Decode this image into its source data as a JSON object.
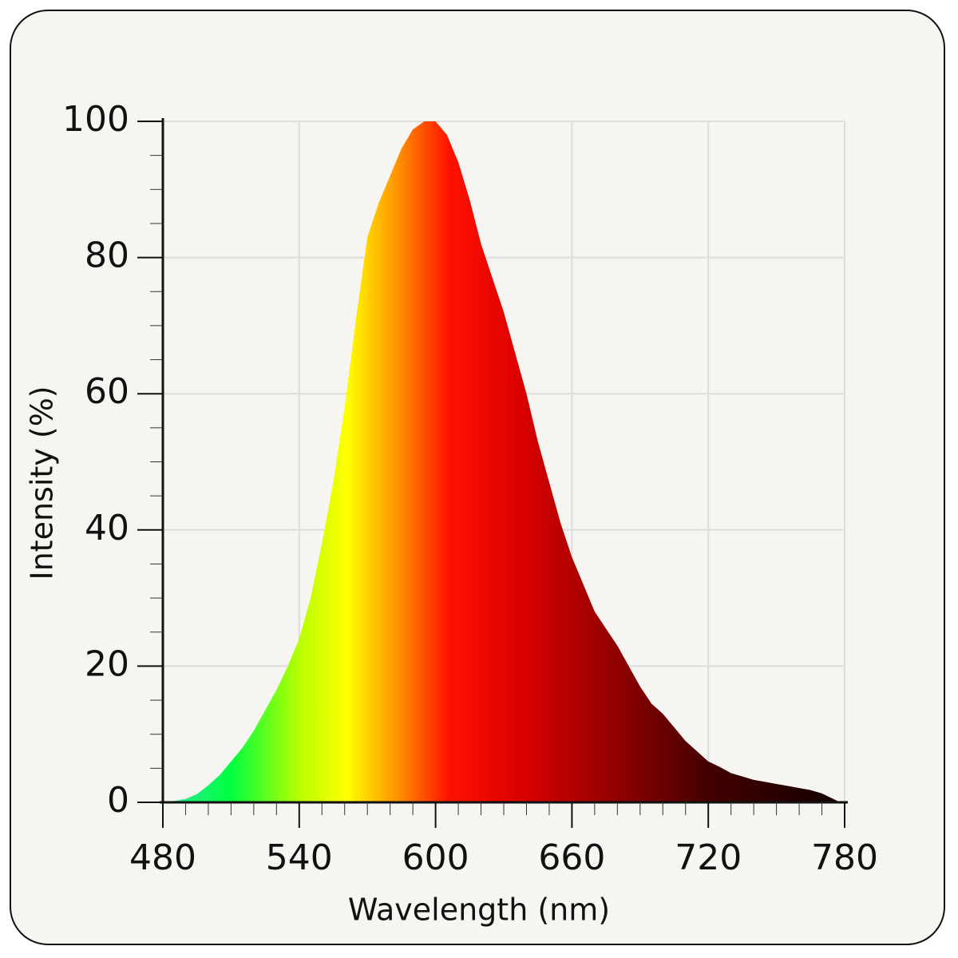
{
  "chart_data": {
    "type": "area",
    "x_label": "Wavelength (nm)",
    "y_label": "Intensity (%)",
    "x": [
      480,
      485,
      490,
      495,
      500,
      505,
      510,
      515,
      520,
      525,
      530,
      535,
      540,
      545,
      550,
      555,
      560,
      565,
      570,
      575,
      580,
      585,
      590,
      595,
      600,
      605,
      610,
      615,
      620,
      625,
      630,
      635,
      640,
      645,
      650,
      655,
      660,
      665,
      670,
      675,
      680,
      685,
      690,
      695,
      700,
      705,
      710,
      715,
      720,
      725,
      730,
      735,
      740,
      745,
      750,
      755,
      760,
      765,
      770,
      775,
      778
    ],
    "values": [
      0,
      0.2,
      0.5,
      1.2,
      2.5,
      4,
      6,
      8,
      10.5,
      13.5,
      16.5,
      20,
      24,
      30,
      38,
      47,
      58,
      71,
      83,
      88,
      92,
      96,
      98.8,
      100,
      100,
      98,
      94,
      88.5,
      82,
      77,
      72,
      66,
      60,
      53,
      47,
      41,
      36,
      32,
      28,
      25.5,
      23,
      20,
      17,
      14.5,
      13,
      11,
      9,
      7.5,
      6,
      5.2,
      4.3,
      3.8,
      3.3,
      3,
      2.7,
      2.4,
      2.1,
      1.8,
      1.3,
      0.5,
      0
    ],
    "xlim": [
      480,
      780
    ],
    "xticks": [
      480,
      540,
      600,
      660,
      720,
      780
    ],
    "ylim": [
      0,
      100
    ],
    "yticks": [
      0,
      20,
      40,
      60,
      80,
      100
    ],
    "grid": true
  }
}
